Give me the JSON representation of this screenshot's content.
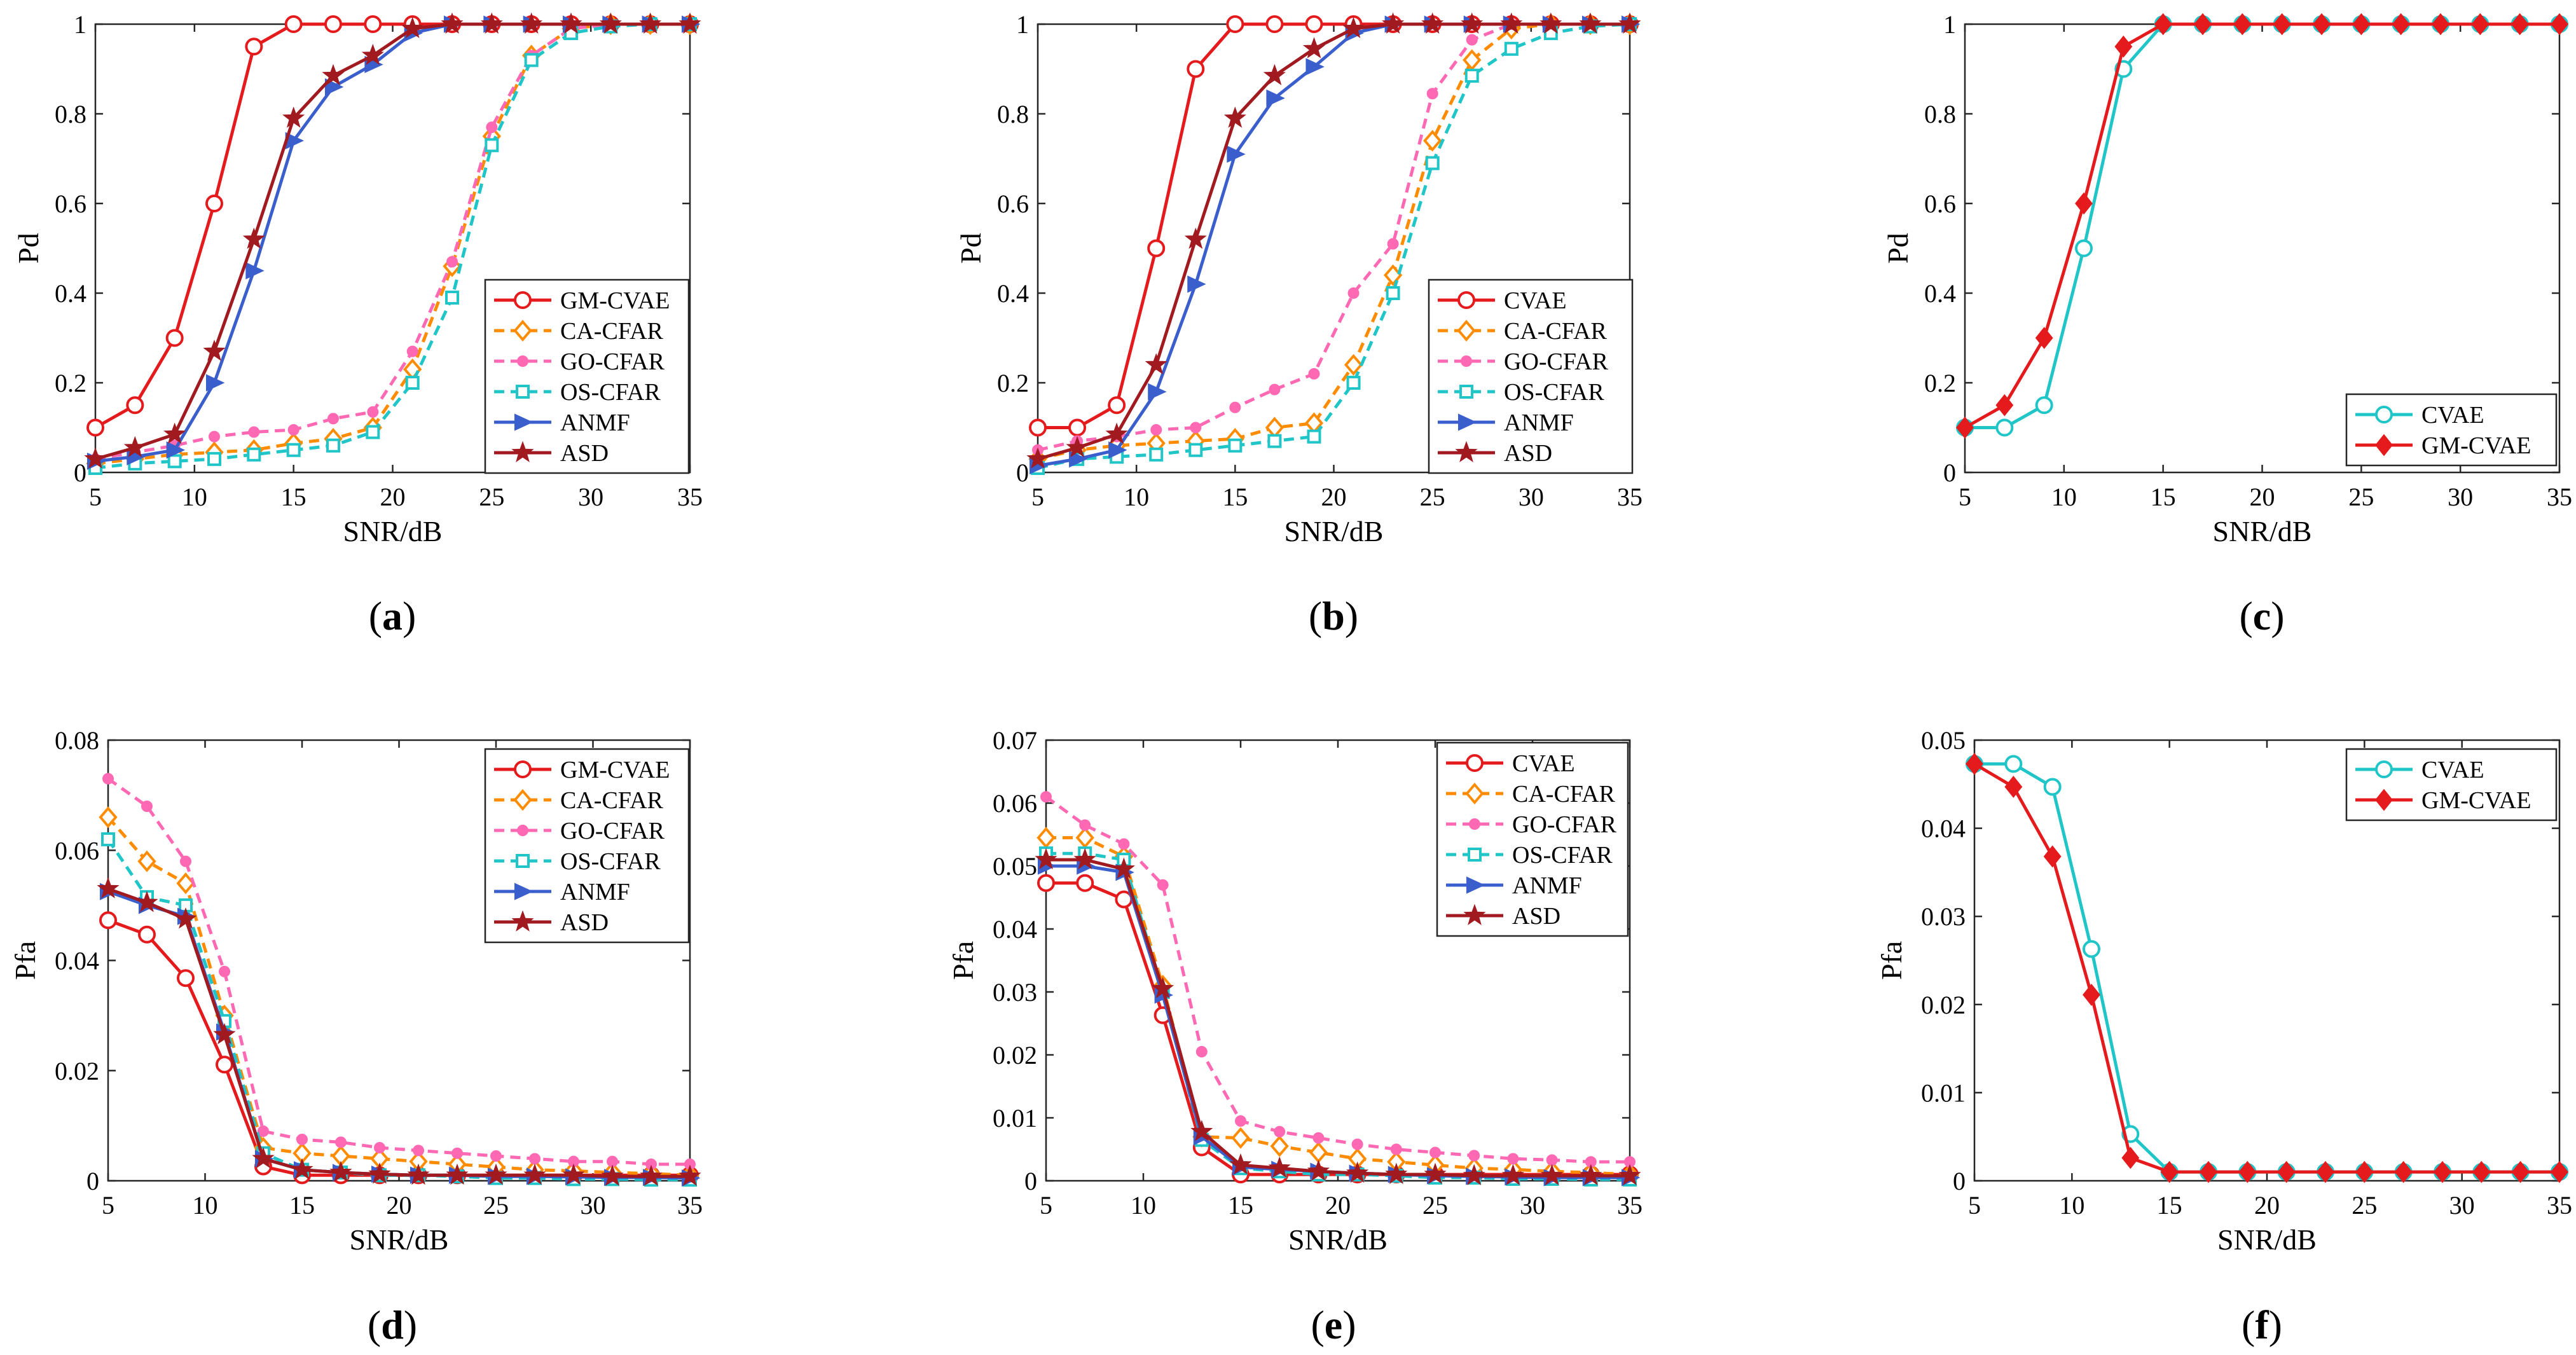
{
  "figure": {
    "background": "#ffffff"
  },
  "styles": {
    "GM-CVAE": {
      "color": "#e41a1c",
      "dash": "",
      "marker": "circle",
      "width": 5
    },
    "CA-CFAR": {
      "color": "#ff8c00",
      "dash": "16,10",
      "marker": "diamond",
      "width": 5
    },
    "GO-CFAR": {
      "color": "#ff69b4",
      "dash": "16,10",
      "marker": "dot",
      "width": 5
    },
    "OS-CFAR": {
      "color": "#20c5c8",
      "dash": "16,10",
      "marker": "square",
      "width": 5
    },
    "ANMF": {
      "color": "#3a5fcd",
      "dash": "",
      "marker": "triangle-right",
      "width": 5
    },
    "ASD": {
      "color": "#a01a20",
      "dash": "",
      "marker": "star",
      "width": 5
    },
    "CVAE-b": {
      "color": "#e41a1c",
      "dash": "",
      "marker": "circle",
      "width": 5
    },
    "CVAE-c": {
      "color": "#20c5c8",
      "dash": "",
      "marker": "circle",
      "width": 5
    },
    "GM-CVAE-c": {
      "color": "#e41a1c",
      "dash": "",
      "marker": "diamond-filled",
      "width": 5
    }
  },
  "chart_data": [
    {
      "id": "a",
      "type": "line",
      "caption_label": "a",
      "xlabel": "SNR/dB",
      "ylabel": "Pd",
      "xlim": [
        5,
        35
      ],
      "ylim": [
        0,
        1
      ],
      "xticks": [
        5,
        10,
        15,
        20,
        25,
        30,
        35
      ],
      "yticks": [
        0,
        0.2,
        0.4,
        0.6,
        0.8,
        1
      ],
      "ytick_labels": [
        "0",
        "0.2",
        "0.4",
        "0.6",
        "0.8",
        "1"
      ],
      "legend_position": "center-right",
      "x": [
        5,
        7,
        9,
        11,
        13,
        15,
        17,
        19,
        21,
        23,
        25,
        27,
        29,
        31,
        33,
        35
      ],
      "series": [
        {
          "name": "GM-CVAE",
          "style": "GM-CVAE",
          "values": [
            0.1,
            0.15,
            0.3,
            0.6,
            0.95,
            1,
            1,
            1,
            1,
            1,
            1,
            1,
            1,
            1,
            1,
            1
          ]
        },
        {
          "name": "CA-CFAR",
          "style": "CA-CFAR",
          "values": [
            0.02,
            0.03,
            0.04,
            0.045,
            0.05,
            0.065,
            0.075,
            0.1,
            0.23,
            0.46,
            0.75,
            0.93,
            0.99,
            1,
            1,
            1
          ]
        },
        {
          "name": "GO-CFAR",
          "style": "GO-CFAR",
          "values": [
            0.03,
            0.045,
            0.06,
            0.08,
            0.09,
            0.095,
            0.12,
            0.135,
            0.27,
            0.47,
            0.77,
            0.93,
            0.99,
            1,
            1,
            1
          ]
        },
        {
          "name": "OS-CFAR",
          "style": "OS-CFAR",
          "values": [
            0.01,
            0.02,
            0.025,
            0.03,
            0.04,
            0.05,
            0.06,
            0.09,
            0.2,
            0.39,
            0.73,
            0.92,
            0.98,
            0.995,
            1,
            1
          ]
        },
        {
          "name": "ANMF",
          "style": "ANMF",
          "values": [
            0.025,
            0.035,
            0.05,
            0.2,
            0.45,
            0.74,
            0.86,
            0.91,
            0.98,
            1,
            1,
            1,
            1,
            1,
            1,
            1
          ]
        },
        {
          "name": "ASD",
          "style": "ASD",
          "values": [
            0.03,
            0.055,
            0.085,
            0.27,
            0.52,
            0.79,
            0.885,
            0.93,
            0.99,
            1,
            1,
            1,
            1,
            1,
            1,
            1
          ]
        }
      ]
    },
    {
      "id": "b",
      "type": "line",
      "caption_label": "b",
      "xlabel": "SNR/dB",
      "ylabel": "Pd",
      "xlim": [
        5,
        35
      ],
      "ylim": [
        0,
        1
      ],
      "xticks": [
        5,
        10,
        15,
        20,
        25,
        30,
        35
      ],
      "yticks": [
        0,
        0.2,
        0.4,
        0.6,
        0.8,
        1
      ],
      "ytick_labels": [
        "0",
        "0.2",
        "0.4",
        "0.6",
        "0.8",
        "1"
      ],
      "legend_position": "center-right",
      "x": [
        5,
        7,
        9,
        11,
        13,
        15,
        17,
        19,
        21,
        23,
        25,
        27,
        29,
        31,
        33,
        35
      ],
      "series": [
        {
          "name": "CVAE",
          "style": "CVAE-b",
          "values": [
            0.1,
            0.1,
            0.15,
            0.5,
            0.9,
            1,
            1,
            1,
            1,
            1,
            1,
            1,
            1,
            1,
            1,
            1
          ]
        },
        {
          "name": "CA-CFAR",
          "style": "CA-CFAR",
          "values": [
            0.03,
            0.05,
            0.06,
            0.065,
            0.07,
            0.075,
            0.1,
            0.11,
            0.24,
            0.44,
            0.74,
            0.92,
            0.99,
            1,
            1,
            1
          ]
        },
        {
          "name": "GO-CFAR",
          "style": "GO-CFAR",
          "values": [
            0.05,
            0.07,
            0.08,
            0.095,
            0.1,
            0.145,
            0.185,
            0.22,
            0.4,
            0.51,
            0.845,
            0.965,
            1,
            1,
            1,
            1
          ]
        },
        {
          "name": "OS-CFAR",
          "style": "OS-CFAR",
          "values": [
            0.01,
            0.03,
            0.035,
            0.04,
            0.05,
            0.06,
            0.07,
            0.08,
            0.2,
            0.4,
            0.69,
            0.885,
            0.945,
            0.98,
            0.995,
            1
          ]
        },
        {
          "name": "ANMF",
          "style": "ANMF",
          "values": [
            0.015,
            0.03,
            0.05,
            0.18,
            0.42,
            0.71,
            0.835,
            0.905,
            0.98,
            1,
            1,
            1,
            1,
            1,
            1,
            1
          ]
        },
        {
          "name": "ASD",
          "style": "ASD",
          "values": [
            0.03,
            0.055,
            0.085,
            0.24,
            0.52,
            0.79,
            0.885,
            0.945,
            0.99,
            1,
            1,
            1,
            1,
            1,
            1,
            1
          ]
        }
      ]
    },
    {
      "id": "c",
      "type": "line",
      "caption_label": "c",
      "xlabel": "SNR/dB",
      "ylabel": "Pd",
      "xlim": [
        5,
        35
      ],
      "ylim": [
        0,
        1
      ],
      "xticks": [
        5,
        10,
        15,
        20,
        25,
        30,
        35
      ],
      "yticks": [
        0,
        0.2,
        0.4,
        0.6,
        0.8,
        1
      ],
      "ytick_labels": [
        "0",
        "0.2",
        "0.4",
        "0.6",
        "0.8",
        "1"
      ],
      "legend_position": "bottom-right",
      "x": [
        5,
        7,
        9,
        11,
        13,
        15,
        17,
        19,
        21,
        23,
        25,
        27,
        29,
        31,
        33,
        35
      ],
      "series": [
        {
          "name": "CVAE",
          "style": "CVAE-c",
          "values": [
            0.1,
            0.1,
            0.15,
            0.5,
            0.9,
            1,
            1,
            1,
            1,
            1,
            1,
            1,
            1,
            1,
            1,
            1
          ]
        },
        {
          "name": "GM-CVAE",
          "style": "GM-CVAE-c",
          "values": [
            0.1,
            0.15,
            0.3,
            0.6,
            0.95,
            1,
            1,
            1,
            1,
            1,
            1,
            1,
            1,
            1,
            1,
            1
          ]
        }
      ]
    },
    {
      "id": "d",
      "type": "line",
      "caption_label": "d",
      "xlabel": "SNR/dB",
      "ylabel": "Pfa",
      "xlim": [
        5,
        35
      ],
      "ylim": [
        0,
        0.08
      ],
      "xticks": [
        5,
        10,
        15,
        20,
        25,
        30,
        35
      ],
      "yticks": [
        0,
        0.02,
        0.04,
        0.06,
        0.08
      ],
      "ytick_labels": [
        "0",
        "0.02",
        "0.04",
        "0.06",
        "0.08"
      ],
      "legend_position": "top-right",
      "x": [
        5,
        7,
        9,
        11,
        13,
        15,
        17,
        19,
        21,
        23,
        25,
        27,
        29,
        31,
        33,
        35
      ],
      "series": [
        {
          "name": "GM-CVAE",
          "style": "GM-CVAE",
          "values": [
            0.0473,
            0.0447,
            0.0368,
            0.0211,
            0.0026,
            0.001,
            0.001,
            0.001,
            0.001,
            0.001,
            0.001,
            0.001,
            0.001,
            0.001,
            0.001,
            0.001
          ]
        },
        {
          "name": "CA-CFAR",
          "style": "CA-CFAR",
          "values": [
            0.066,
            0.058,
            0.054,
            0.03,
            0.006,
            0.005,
            0.0045,
            0.004,
            0.0035,
            0.003,
            0.0025,
            0.002,
            0.0018,
            0.0015,
            0.0013,
            0.001
          ]
        },
        {
          "name": "GO-CFAR",
          "style": "GO-CFAR",
          "values": [
            0.073,
            0.068,
            0.058,
            0.038,
            0.009,
            0.0075,
            0.007,
            0.006,
            0.0055,
            0.005,
            0.0045,
            0.004,
            0.0035,
            0.0035,
            0.003,
            0.003
          ]
        },
        {
          "name": "OS-CFAR",
          "style": "OS-CFAR",
          "values": [
            0.062,
            0.0515,
            0.05,
            0.029,
            0.005,
            0.002,
            0.0015,
            0.001,
            0.001,
            0.0008,
            0.0005,
            0.0005,
            0.0003,
            0.0003,
            0.0002,
            0.0002
          ]
        },
        {
          "name": "ANMF",
          "style": "ANMF",
          "values": [
            0.0525,
            0.05,
            0.048,
            0.027,
            0.004,
            0.002,
            0.0015,
            0.0012,
            0.001,
            0.001,
            0.0008,
            0.0008,
            0.0007,
            0.0006,
            0.0006,
            0.0005
          ]
        },
        {
          "name": "ASD",
          "style": "ASD",
          "values": [
            0.053,
            0.0505,
            0.0475,
            0.0265,
            0.004,
            0.002,
            0.0015,
            0.0012,
            0.001,
            0.001,
            0.001,
            0.001,
            0.001,
            0.0008,
            0.0008,
            0.0008
          ]
        }
      ]
    },
    {
      "id": "e",
      "type": "line",
      "caption_label": "e",
      "xlabel": "SNR/dB",
      "ylabel": "Pfa",
      "xlim": [
        5,
        35
      ],
      "ylim": [
        0,
        0.07
      ],
      "xticks": [
        5,
        10,
        15,
        20,
        25,
        30,
        35
      ],
      "yticks": [
        0,
        0.01,
        0.02,
        0.03,
        0.04,
        0.05,
        0.06,
        0.07
      ],
      "ytick_labels": [
        "0",
        "0.01",
        "0.02",
        "0.03",
        "0.04",
        "0.05",
        "0.06",
        "0.07"
      ],
      "legend_position": "top-right",
      "x": [
        5,
        7,
        9,
        11,
        13,
        15,
        17,
        19,
        21,
        23,
        25,
        27,
        29,
        31,
        33,
        35
      ],
      "series": [
        {
          "name": "CVAE",
          "style": "CVAE-b",
          "values": [
            0.0473,
            0.0473,
            0.0447,
            0.0263,
            0.0053,
            0.001,
            0.001,
            0.001,
            0.001,
            0.001,
            0.001,
            0.001,
            0.001,
            0.001,
            0.001,
            0.001
          ]
        },
        {
          "name": "CA-CFAR",
          "style": "CA-CFAR",
          "values": [
            0.0545,
            0.0545,
            0.0515,
            0.031,
            0.007,
            0.0068,
            0.0055,
            0.0045,
            0.0035,
            0.003,
            0.0025,
            0.002,
            0.0018,
            0.0015,
            0.0013,
            0.001
          ]
        },
        {
          "name": "GO-CFAR",
          "style": "GO-CFAR",
          "values": [
            0.061,
            0.0565,
            0.0535,
            0.047,
            0.0205,
            0.0095,
            0.0078,
            0.0068,
            0.0058,
            0.005,
            0.0045,
            0.004,
            0.0035,
            0.0033,
            0.003,
            0.003
          ]
        },
        {
          "name": "OS-CFAR",
          "style": "OS-CFAR",
          "values": [
            0.052,
            0.052,
            0.051,
            0.03,
            0.0065,
            0.002,
            0.0015,
            0.001,
            0.001,
            0.0008,
            0.0005,
            0.0005,
            0.0003,
            0.0003,
            0.0002,
            0.0002
          ]
        },
        {
          "name": "ANMF",
          "style": "ANMF",
          "values": [
            0.05,
            0.05,
            0.049,
            0.0295,
            0.007,
            0.0022,
            0.0018,
            0.0015,
            0.0012,
            0.001,
            0.0008,
            0.0007,
            0.0006,
            0.0005,
            0.0005,
            0.0005
          ]
        },
        {
          "name": "ASD",
          "style": "ASD",
          "values": [
            0.051,
            0.051,
            0.0495,
            0.0305,
            0.0078,
            0.0025,
            0.002,
            0.0015,
            0.0012,
            0.001,
            0.001,
            0.0008,
            0.0008,
            0.0008,
            0.0008,
            0.0008
          ]
        }
      ]
    },
    {
      "id": "f",
      "type": "line",
      "caption_label": "f",
      "xlabel": "SNR/dB",
      "ylabel": "Pfa",
      "xlim": [
        5,
        35
      ],
      "ylim": [
        0,
        0.05
      ],
      "xticks": [
        5,
        10,
        15,
        20,
        25,
        30,
        35
      ],
      "yticks": [
        0,
        0.01,
        0.02,
        0.03,
        0.04,
        0.05
      ],
      "ytick_labels": [
        "0",
        "0.01",
        "0.02",
        "0.03",
        "0.04",
        "0.05"
      ],
      "legend_position": "top-right",
      "x": [
        5,
        7,
        9,
        11,
        13,
        15,
        17,
        19,
        21,
        23,
        25,
        27,
        29,
        31,
        33,
        35
      ],
      "series": [
        {
          "name": "CVAE",
          "style": "CVAE-c",
          "values": [
            0.0473,
            0.0473,
            0.0447,
            0.0263,
            0.0053,
            0.001,
            0.001,
            0.001,
            0.001,
            0.001,
            0.001,
            0.001,
            0.001,
            0.001,
            0.001,
            0.001
          ]
        },
        {
          "name": "GM-CVAE",
          "style": "GM-CVAE-c",
          "values": [
            0.0473,
            0.0447,
            0.0368,
            0.0211,
            0.0026,
            0.001,
            0.001,
            0.001,
            0.001,
            0.001,
            0.001,
            0.001,
            0.001,
            0.001,
            0.001,
            0.001
          ]
        }
      ]
    }
  ]
}
